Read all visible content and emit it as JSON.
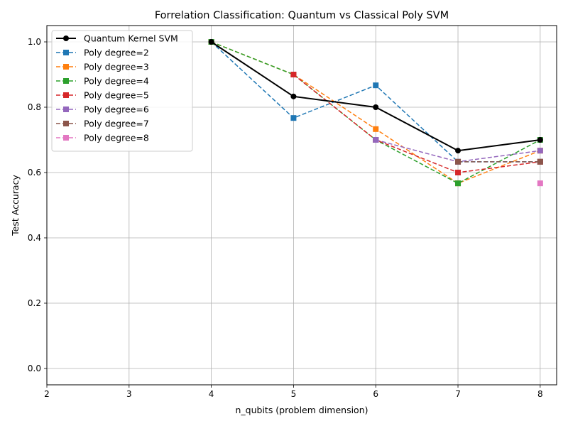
{
  "chart_data": {
    "type": "line",
    "title": "Forrelation Classification: Quantum vs Classical Poly SVM",
    "xlabel": "n_qubits (problem dimension)",
    "ylabel": "Test Accuracy",
    "xlim": [
      2,
      8.2
    ],
    "ylim": [
      -0.05,
      1.05
    ],
    "xticks": [
      2,
      3,
      4,
      5,
      6,
      7,
      8
    ],
    "xtick_labels": [
      "2",
      "3",
      "4",
      "5",
      "6",
      "7",
      "8"
    ],
    "yticks": [
      0.0,
      0.2,
      0.4,
      0.6,
      0.8,
      1.0
    ],
    "ytick_labels": [
      "0.0",
      "0.2",
      "0.4",
      "0.6",
      "0.8",
      "1.0"
    ],
    "grid": true,
    "legend_position": "top-left",
    "series": [
      {
        "name": "Quantum Kernel SVM",
        "color": "#000000",
        "style": "solid",
        "marker": "circle",
        "x": [
          4,
          5,
          6,
          7,
          8
        ],
        "y": [
          1.0,
          0.833,
          0.8,
          0.667,
          0.7
        ]
      },
      {
        "name": "Poly degree=2",
        "color": "#1f77b4",
        "style": "dashed",
        "marker": "square",
        "x": [
          4,
          5,
          6,
          7,
          8
        ],
        "y": [
          1.0,
          0.767,
          0.867,
          0.633,
          0.633
        ]
      },
      {
        "name": "Poly degree=3",
        "color": "#ff7f0e",
        "style": "dashed",
        "marker": "square",
        "x": [
          4,
          5,
          6,
          7,
          8
        ],
        "y": [
          1.0,
          0.9,
          0.733,
          0.567,
          0.667
        ]
      },
      {
        "name": "Poly degree=4",
        "color": "#2ca02c",
        "style": "dashed",
        "marker": "square",
        "x": [
          4,
          5,
          6,
          7,
          8
        ],
        "y": [
          1.0,
          0.9,
          0.7,
          0.567,
          0.7
        ]
      },
      {
        "name": "Poly degree=5",
        "color": "#d62728",
        "style": "dashed",
        "marker": "square",
        "x": [
          5,
          6,
          7,
          8
        ],
        "y": [
          0.9,
          0.7,
          0.6,
          0.633
        ]
      },
      {
        "name": "Poly degree=6",
        "color": "#9467bd",
        "style": "dashed",
        "marker": "square",
        "x": [
          6,
          7,
          8
        ],
        "y": [
          0.7,
          0.633,
          0.667
        ]
      },
      {
        "name": "Poly degree=7",
        "color": "#8c564b",
        "style": "dashed",
        "marker": "square",
        "x": [
          7,
          8
        ],
        "y": [
          0.633,
          0.633
        ]
      },
      {
        "name": "Poly degree=8",
        "color": "#e377c2",
        "style": "dashed",
        "marker": "square",
        "x": [
          8
        ],
        "y": [
          0.567
        ]
      }
    ]
  }
}
